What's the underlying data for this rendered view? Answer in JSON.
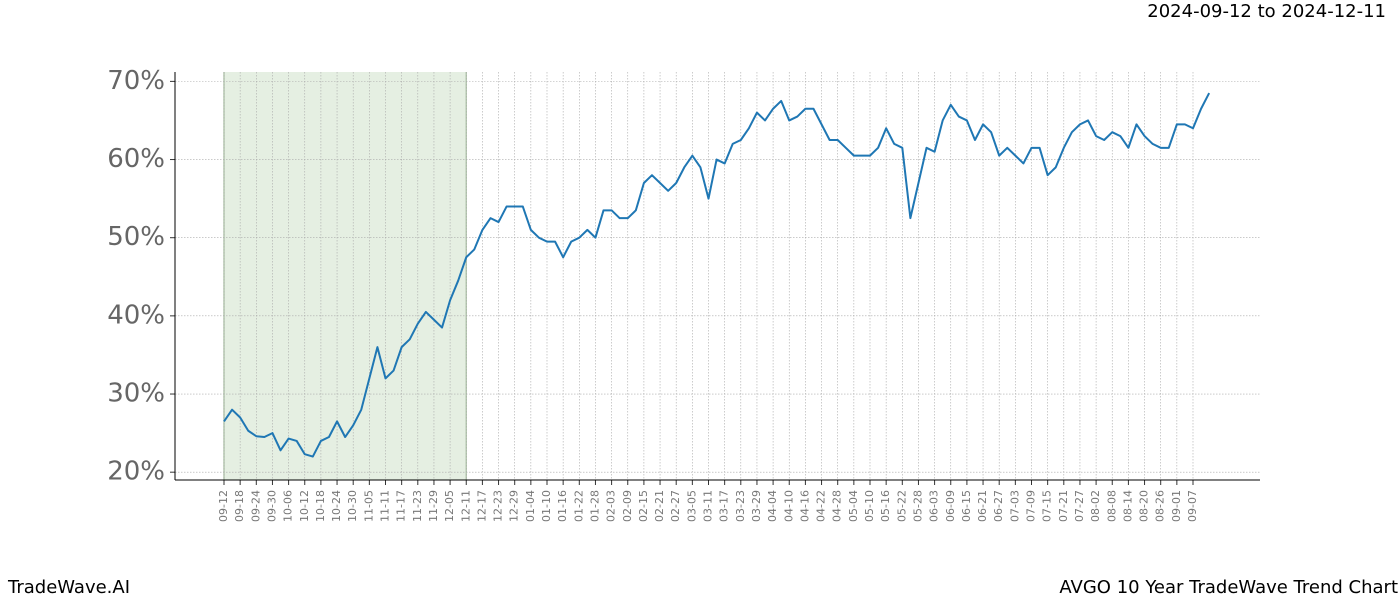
{
  "header": "2024-09-12 to 2024-12-11",
  "footer": {
    "left": "TradeWave.AI",
    "right": "AVGO 10 Year TradeWave Trend Chart"
  },
  "chart_data": {
    "type": "line",
    "categories": [
      "09-12",
      null,
      "09-18",
      null,
      "09-24",
      null,
      "09-30",
      null,
      "10-06",
      null,
      "10-12",
      null,
      "10-18",
      null,
      "10-24",
      null,
      "10-30",
      null,
      "11-05",
      null,
      "11-11",
      null,
      "11-17",
      null,
      "11-23",
      null,
      "11-29",
      null,
      "12-05",
      null,
      "12-11",
      null,
      "12-17",
      null,
      "12-23",
      null,
      "12-29",
      null,
      "01-04",
      null,
      "01-10",
      null,
      "01-16",
      null,
      "01-22",
      null,
      "01-28",
      null,
      "02-03",
      null,
      "02-09",
      null,
      "02-15",
      null,
      "02-21",
      null,
      "02-27",
      null,
      "03-05",
      null,
      "03-11",
      null,
      "03-17",
      null,
      "03-23",
      null,
      "03-29",
      null,
      "04-04",
      null,
      "04-10",
      null,
      "04-16",
      null,
      "04-22",
      null,
      "04-28",
      null,
      "05-04",
      null,
      "05-10",
      null,
      "05-16",
      null,
      "05-22",
      null,
      "05-28",
      null,
      "06-03",
      null,
      "06-09",
      null,
      "06-15",
      null,
      "06-21",
      null,
      "06-27",
      null,
      "07-03",
      null,
      "07-09",
      null,
      "07-15",
      null,
      "07-21",
      null,
      "07-27",
      null,
      "08-02",
      null,
      "08-08",
      null,
      "08-14",
      null,
      "08-20",
      null,
      "08-26",
      null,
      "09-01",
      null,
      "09-07",
      null,
      null
    ],
    "series": [
      {
        "name": "AVGO",
        "color": "#1f77b4",
        "values": [
          26.5,
          28,
          27,
          25.3,
          24.6,
          24.5,
          25,
          22.8,
          24.3,
          24,
          22.3,
          22,
          24,
          24.5,
          26.5,
          24.5,
          26,
          28,
          32,
          36,
          32,
          33,
          36,
          37,
          39,
          40.5,
          39.5,
          38.5,
          42,
          44.5,
          47.5,
          48.5,
          51,
          52.5,
          52,
          54,
          54,
          54,
          51,
          50,
          49.5,
          49.5,
          47.5,
          49.5,
          50,
          51,
          50,
          53.5,
          53.5,
          52.5,
          52.5,
          53.5,
          57,
          58,
          57,
          56,
          57,
          59,
          60.5,
          59,
          55,
          60,
          59.5,
          62,
          62.5,
          64,
          66,
          65,
          66.5,
          67.5,
          65,
          65.5,
          66.5,
          66.5,
          64.5,
          62.5,
          62.5,
          61.5,
          60.5,
          60.5,
          60.5,
          61.5,
          64,
          62,
          61.5,
          52.5,
          57,
          61.5,
          61,
          65,
          67,
          65.5,
          65,
          62.5,
          64.5,
          63.5,
          60.5,
          61.5,
          60.5,
          59.5,
          61.5,
          61.5,
          58,
          59,
          61.5,
          63.5,
          64.5,
          65,
          63,
          62.5,
          63.5,
          63,
          61.5,
          64.5,
          63,
          62,
          61.5,
          61.5,
          64.5,
          64.5,
          64,
          66.5,
          68.5
        ]
      }
    ],
    "highlight": {
      "from": "09-12",
      "to": "12-11",
      "color": "#e5efe2"
    },
    "ylim": [
      19,
      71.2
    ],
    "yticks": [
      {
        "value": 20,
        "label": "20%"
      },
      {
        "value": 30,
        "label": "30%"
      },
      {
        "value": 40,
        "label": "40%"
      },
      {
        "value": 50,
        "label": "50%"
      },
      {
        "value": 60,
        "label": "60%"
      },
      {
        "value": 70,
        "label": "70%"
      }
    ],
    "grid": true
  }
}
